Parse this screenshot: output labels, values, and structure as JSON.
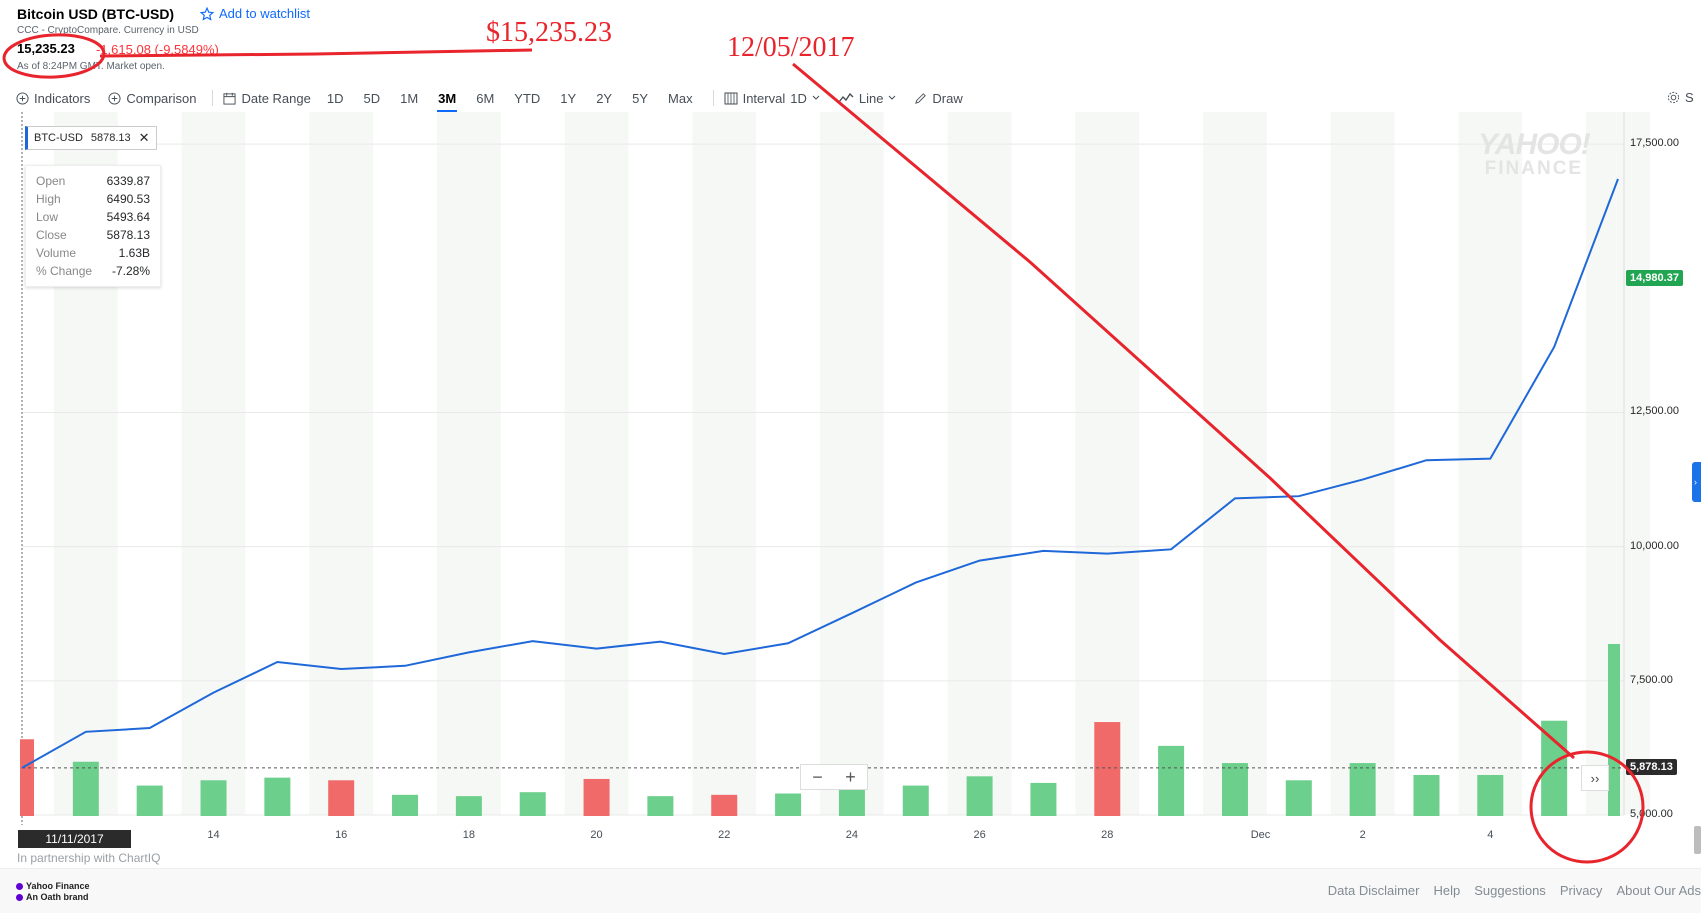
{
  "header": {
    "title": "Bitcoin USD (BTC-USD)",
    "watchlist_label": "Add to watchlist",
    "source": "CCC - CryptoCompare. Currency in USD",
    "price": "15,235.23",
    "change": "-1,615.08 (-9.5849%)",
    "as_of": "As of 8:24PM GMT. Market open."
  },
  "toolbar": {
    "indicators": "Indicators",
    "comparison": "Comparison",
    "date_range": "Date Range",
    "ranges": [
      "1D",
      "5D",
      "1M",
      "3M",
      "6M",
      "YTD",
      "1Y",
      "2Y",
      "5Y",
      "Max"
    ],
    "active_range": "3M",
    "interval_label": "Interval",
    "interval_value": "1D",
    "chart_type": "Line",
    "draw": "Draw",
    "settings": "S"
  },
  "legend": {
    "symbol": "BTC-USD",
    "value": "5878.13"
  },
  "ohlc": [
    {
      "k": "Open",
      "v": "6339.87"
    },
    {
      "k": "High",
      "v": "6490.53"
    },
    {
      "k": "Low",
      "v": "5493.64"
    },
    {
      "k": "Close",
      "v": "5878.13"
    },
    {
      "k": "Volume",
      "v": "1.63B"
    },
    {
      "k": "% Change",
      "v": "-7.28%"
    }
  ],
  "watermark": {
    "line1": "YAHOO!",
    "line2": "FINANCE"
  },
  "chart_data": {
    "type": "line",
    "series": [
      {
        "values": [
          5878.13,
          6550,
          6620,
          7280,
          7850,
          7720,
          7780,
          8030,
          8240,
          8100,
          8230,
          8000,
          8200,
          8760,
          9330,
          9740,
          9920,
          9870,
          9950,
          10900,
          10940,
          11250,
          11610,
          11640,
          13720,
          16850
        ]
      }
    ],
    "x": [
      "11/11",
      "11/12",
      "11/13",
      "11/14",
      "11/15",
      "11/16",
      "11/17",
      "11/18",
      "11/19",
      "11/20",
      "11/21",
      "11/22",
      "11/23",
      "11/24",
      "11/25",
      "11/26",
      "11/27",
      "11/28",
      "11/29",
      "11/30",
      "12/01",
      "12/02",
      "12/03",
      "12/04",
      "12/05",
      "12/06"
    ],
    "volume": [
      {
        "v": 0.58,
        "dir": "down"
      },
      {
        "v": 0.41,
        "dir": "up"
      },
      {
        "v": 0.23,
        "dir": "up"
      },
      {
        "v": 0.27,
        "dir": "up"
      },
      {
        "v": 0.29,
        "dir": "up"
      },
      {
        "v": 0.27,
        "dir": "down"
      },
      {
        "v": 0.16,
        "dir": "up"
      },
      {
        "v": 0.15,
        "dir": "up"
      },
      {
        "v": 0.18,
        "dir": "up"
      },
      {
        "v": 0.28,
        "dir": "down"
      },
      {
        "v": 0.15,
        "dir": "up"
      },
      {
        "v": 0.16,
        "dir": "down"
      },
      {
        "v": 0.17,
        "dir": "up"
      },
      {
        "v": 0.21,
        "dir": "up"
      },
      {
        "v": 0.23,
        "dir": "up"
      },
      {
        "v": 0.3,
        "dir": "up"
      },
      {
        "v": 0.25,
        "dir": "up"
      },
      {
        "v": 0.71,
        "dir": "down"
      },
      {
        "v": 0.53,
        "dir": "up"
      },
      {
        "v": 0.4,
        "dir": "up"
      },
      {
        "v": 0.27,
        "dir": "up"
      },
      {
        "v": 0.4,
        "dir": "up"
      },
      {
        "v": 0.31,
        "dir": "up"
      },
      {
        "v": 0.31,
        "dir": "up"
      },
      {
        "v": 0.72,
        "dir": "up"
      },
      {
        "v": 1.3,
        "dir": "up"
      }
    ],
    "ylim": [
      5000,
      17800
    ],
    "yticks": [
      5000,
      7500,
      10000,
      12500,
      17500
    ],
    "ytick_labels": [
      "5,000.00",
      "7,500.00",
      "10,000.00",
      "12,500.00",
      "17,500.00"
    ],
    "xtick_labels": [
      {
        "i": 3,
        "label": "14"
      },
      {
        "i": 5,
        "label": "16"
      },
      {
        "i": 7,
        "label": "18"
      },
      {
        "i": 9,
        "label": "20"
      },
      {
        "i": 11,
        "label": "22"
      },
      {
        "i": 13,
        "label": "24"
      },
      {
        "i": 15,
        "label": "26"
      },
      {
        "i": 17,
        "label": "28"
      },
      {
        "i": 19.4,
        "label": "Dec"
      },
      {
        "i": 21,
        "label": "2"
      },
      {
        "i": 23,
        "label": "4"
      }
    ],
    "current_value_label": "14,980.37",
    "current_value": 14980.37,
    "crosshair_value_label": "5,878.13",
    "crosshair_value": 5878.13,
    "colors": {
      "line": "#1e68d9",
      "up": "#6ccf8b",
      "down": "#f06a6a",
      "badge_up": "#22a552",
      "badge_cross": "#2b2b2b"
    }
  },
  "date_badge": "11/11/2017",
  "partner": "In partnership with ChartIQ",
  "footer": {
    "brand_line1": "Yahoo Finance",
    "brand_line2": "An Oath brand",
    "links": [
      "Data Disclaimer",
      "Help",
      "Suggestions",
      "Privacy",
      "About Our Ads"
    ]
  },
  "annotations": {
    "price_note": "$15,235.23",
    "date_note": "12/05/2017",
    "color": "#e8242c"
  }
}
